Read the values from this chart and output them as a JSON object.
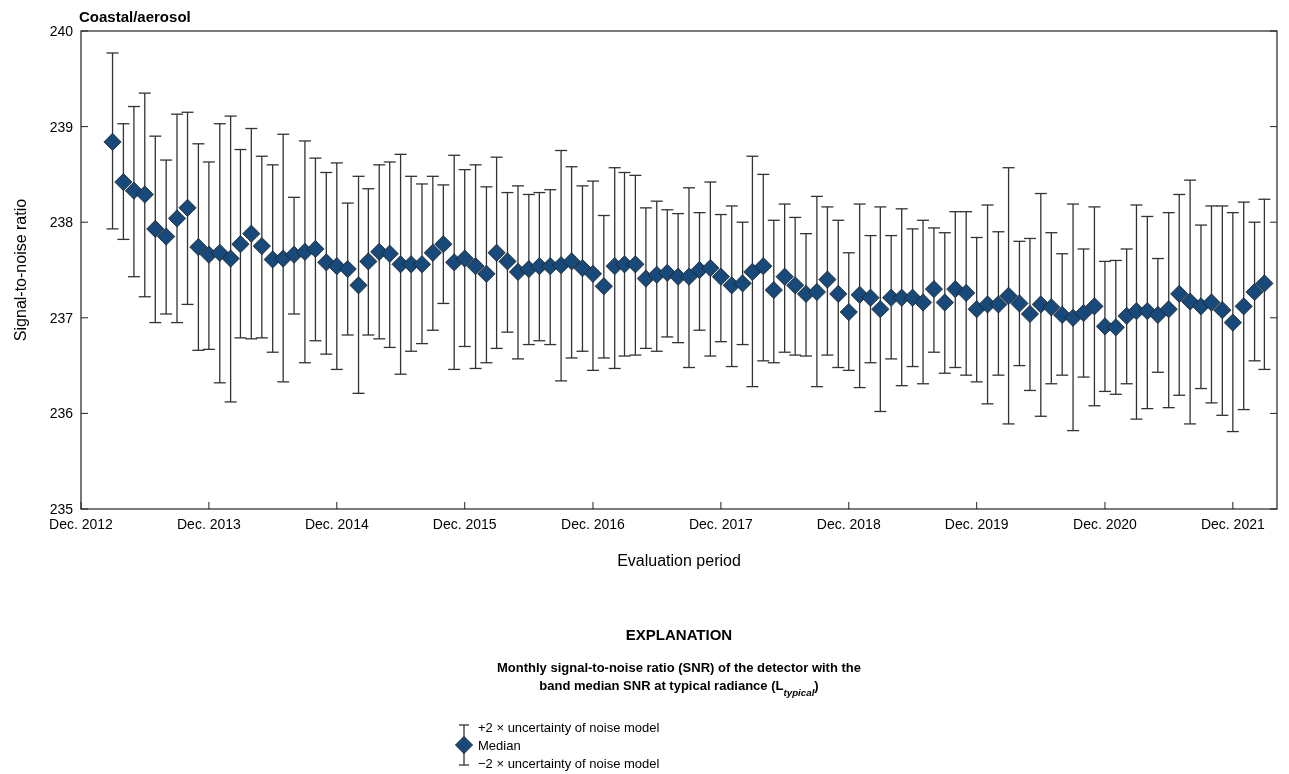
{
  "chart_data": {
    "type": "scatter",
    "title": "Coastal/aerosol",
    "xlabel": "Evaluation period",
    "ylabel": "Signal-to-noise ratio",
    "legend_title": "Monthly signal-to-noise ratio (SNR) of the detector with the band median SNR at typical radiance (L$_{typical}$)",
    "annotations": [
      "EXPLANATION",
      "+2 × uncertainty of noise model",
      "−2 × uncertainty of noise model"
    ],
    "legend": "bottom",
    "marker": "diamond",
    "xlim": [
      "2012-12-01",
      "2022-04-06"
    ],
    "xticks": [
      {
        "value": "2012-12",
        "label": "Dec. 2012"
      },
      {
        "value": "2013-12",
        "label": "Dec. 2013"
      },
      {
        "value": "2014-12",
        "label": "Dec. 2014"
      },
      {
        "value": "2015-12",
        "label": "Dec. 2015"
      },
      {
        "value": "2016-12",
        "label": "Dec. 2016"
      },
      {
        "value": "2017-12",
        "label": "Dec. 2017"
      },
      {
        "value": "2018-12",
        "label": "Dec. 2018"
      },
      {
        "value": "2019-12",
        "label": "Dec. 2019"
      },
      {
        "value": "2020-12",
        "label": "Dec. 2020"
      },
      {
        "value": "2021-12",
        "label": "Dec. 2021"
      }
    ],
    "ylim": [
      235,
      240
    ],
    "yticks": [
      235,
      236,
      237,
      238,
      239,
      240
    ],
    "x": [
      "2013-03",
      "2013-04",
      "2013-05",
      "2013-06",
      "2013-07",
      "2013-08",
      "2013-09",
      "2013-10",
      "2013-11",
      "2013-12",
      "2014-01",
      "2014-02",
      "2014-03",
      "2014-04",
      "2014-05",
      "2014-06",
      "2014-07",
      "2014-08",
      "2014-09",
      "2014-10",
      "2014-11",
      "2014-12",
      "2015-01",
      "2015-02",
      "2015-03",
      "2015-04",
      "2015-05",
      "2015-06",
      "2015-07",
      "2015-08",
      "2015-09",
      "2015-10",
      "2015-11",
      "2015-12",
      "2016-01",
      "2016-02",
      "2016-03",
      "2016-04",
      "2016-05",
      "2016-06",
      "2016-07",
      "2016-08",
      "2016-09",
      "2016-10",
      "2016-11",
      "2016-12",
      "2017-01",
      "2017-02",
      "2017-03",
      "2017-04",
      "2017-05",
      "2017-06",
      "2017-07",
      "2017-08",
      "2017-09",
      "2017-10",
      "2017-11",
      "2017-12",
      "2018-01",
      "2018-02",
      "2018-03",
      "2018-04",
      "2018-05",
      "2018-06",
      "2018-07",
      "2018-08",
      "2018-09",
      "2018-10",
      "2018-11",
      "2018-12",
      "2019-01",
      "2019-02",
      "2019-03",
      "2019-04",
      "2019-05",
      "2019-06",
      "2019-07",
      "2019-08",
      "2019-09",
      "2019-10",
      "2019-11",
      "2019-12",
      "2020-01",
      "2020-02",
      "2020-03",
      "2020-04",
      "2020-05",
      "2020-06",
      "2020-07",
      "2020-08",
      "2020-09",
      "2020-10",
      "2020-11",
      "2020-12",
      "2021-01",
      "2021-02",
      "2021-03",
      "2021-04",
      "2021-05",
      "2021-06",
      "2021-07",
      "2021-08",
      "2021-09",
      "2021-10",
      "2021-11",
      "2021-12",
      "2022-01",
      "2022-02",
      "2022-03"
    ],
    "series": [
      {
        "name": "Median",
        "color": "#17497a",
        "values": [
          238.84,
          238.42,
          238.33,
          238.29,
          237.93,
          237.85,
          238.04,
          238.15,
          237.74,
          237.66,
          237.68,
          237.62,
          237.77,
          237.88,
          237.75,
          237.61,
          237.62,
          237.66,
          237.69,
          237.72,
          237.58,
          237.54,
          237.51,
          237.34,
          237.59,
          237.69,
          237.67,
          237.56,
          237.56,
          237.56,
          237.68,
          237.77,
          237.58,
          237.62,
          237.54,
          237.46,
          237.68,
          237.59,
          237.48,
          237.51,
          237.54,
          237.54,
          237.55,
          237.59,
          237.52,
          237.46,
          237.33,
          237.54,
          237.56,
          237.56,
          237.41,
          237.45,
          237.47,
          237.43,
          237.43,
          237.5,
          237.52,
          237.43,
          237.34,
          237.36,
          237.48,
          237.54,
          237.29,
          237.43,
          237.34,
          237.25,
          237.27,
          237.4,
          237.25,
          237.06,
          237.24,
          237.21,
          237.09,
          237.21,
          237.21,
          237.21,
          237.16,
          237.3,
          237.16,
          237.3,
          237.26,
          237.09,
          237.14,
          237.14,
          237.23,
          237.15,
          237.04,
          237.14,
          237.11,
          237.03,
          237.0,
          237.05,
          237.12,
          236.91,
          236.9,
          237.02,
          237.07,
          237.07,
          237.03,
          237.09,
          237.25,
          237.17,
          237.12,
          237.16,
          237.08,
          236.95,
          237.12,
          237.27,
          237.36
        ],
        "errors": [
          [
            237.93,
            239.77
          ],
          [
            237.82,
            239.03
          ],
          [
            237.43,
            239.21
          ],
          [
            237.22,
            239.35
          ],
          [
            236.95,
            238.9
          ],
          [
            237.04,
            238.65
          ],
          [
            236.95,
            239.13
          ],
          [
            237.14,
            239.15
          ],
          [
            236.66,
            238.82
          ],
          [
            236.67,
            238.63
          ],
          [
            236.32,
            239.03
          ],
          [
            236.12,
            239.11
          ],
          [
            236.79,
            238.76
          ],
          [
            236.78,
            238.98
          ],
          [
            236.79,
            238.69
          ],
          [
            236.64,
            238.6
          ],
          [
            236.33,
            238.92
          ],
          [
            237.04,
            238.26
          ],
          [
            236.53,
            238.85
          ],
          [
            236.76,
            238.67
          ],
          [
            236.62,
            238.52
          ],
          [
            236.46,
            238.62
          ],
          [
            236.82,
            238.2
          ],
          [
            236.21,
            238.48
          ],
          [
            236.82,
            238.35
          ],
          [
            236.78,
            238.6
          ],
          [
            236.69,
            238.63
          ],
          [
            236.41,
            238.71
          ],
          [
            236.65,
            238.48
          ],
          [
            236.73,
            238.4
          ],
          [
            236.87,
            238.48
          ],
          [
            237.15,
            238.39
          ],
          [
            236.46,
            238.7
          ],
          [
            236.7,
            238.55
          ],
          [
            236.47,
            238.6
          ],
          [
            236.53,
            238.37
          ],
          [
            236.68,
            238.68
          ],
          [
            236.85,
            238.31
          ],
          [
            236.57,
            238.38
          ],
          [
            236.72,
            238.29
          ],
          [
            236.76,
            238.31
          ],
          [
            236.72,
            238.34
          ],
          [
            236.34,
            238.75
          ],
          [
            236.58,
            238.58
          ],
          [
            236.65,
            238.38
          ],
          [
            236.45,
            238.43
          ],
          [
            236.58,
            238.07
          ],
          [
            236.47,
            238.57
          ],
          [
            236.6,
            238.52
          ],
          [
            236.61,
            238.49
          ],
          [
            236.68,
            238.15
          ],
          [
            236.65,
            238.22
          ],
          [
            236.8,
            238.13
          ],
          [
            236.74,
            238.09
          ],
          [
            236.48,
            238.36
          ],
          [
            236.87,
            238.1
          ],
          [
            236.6,
            238.42
          ],
          [
            236.75,
            238.08
          ],
          [
            236.49,
            238.17
          ],
          [
            236.72,
            238.0
          ],
          [
            236.28,
            238.69
          ],
          [
            236.55,
            238.5
          ],
          [
            236.53,
            238.02
          ],
          [
            236.64,
            238.19
          ],
          [
            236.61,
            238.05
          ],
          [
            236.6,
            237.88
          ],
          [
            236.28,
            238.27
          ],
          [
            236.61,
            238.16
          ],
          [
            236.48,
            238.02
          ],
          [
            236.45,
            237.68
          ],
          [
            236.27,
            238.19
          ],
          [
            236.53,
            237.86
          ],
          [
            236.02,
            238.16
          ],
          [
            236.57,
            237.86
          ],
          [
            236.29,
            238.14
          ],
          [
            236.49,
            237.93
          ],
          [
            236.31,
            238.02
          ],
          [
            236.64,
            237.94
          ],
          [
            236.42,
            237.89
          ],
          [
            236.48,
            238.11
          ],
          [
            236.4,
            238.11
          ],
          [
            236.33,
            237.84
          ],
          [
            236.1,
            238.18
          ],
          [
            236.4,
            237.9
          ],
          [
            235.89,
            238.57
          ],
          [
            236.5,
            237.8
          ],
          [
            236.24,
            237.83
          ],
          [
            235.97,
            238.3
          ],
          [
            236.31,
            237.89
          ],
          [
            236.4,
            237.67
          ],
          [
            235.82,
            238.19
          ],
          [
            236.38,
            237.72
          ],
          [
            236.08,
            238.16
          ],
          [
            236.23,
            237.59
          ],
          [
            236.2,
            237.6
          ],
          [
            236.31,
            237.72
          ],
          [
            235.94,
            238.18
          ],
          [
            236.05,
            238.06
          ],
          [
            236.43,
            237.62
          ],
          [
            236.06,
            238.1
          ],
          [
            236.19,
            238.29
          ],
          [
            235.89,
            238.44
          ],
          [
            236.26,
            237.97
          ],
          [
            236.11,
            238.17
          ],
          [
            235.98,
            238.17
          ],
          [
            235.81,
            238.1
          ],
          [
            236.04,
            238.21
          ],
          [
            236.55,
            238.0
          ],
          [
            236.46,
            238.24
          ]
        ]
      }
    ]
  }
}
